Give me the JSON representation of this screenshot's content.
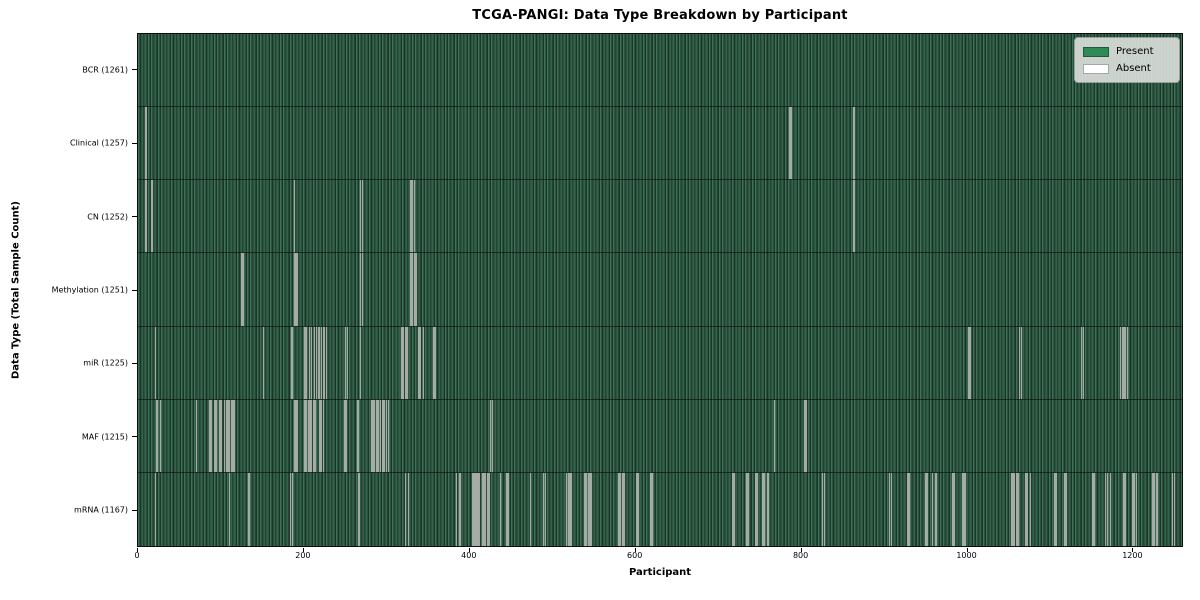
{
  "chart_data": {
    "type": "heatmap",
    "title": "TCGA-PANGI: Data Type Breakdown by Participant",
    "xlabel": "Participant",
    "ylabel": "Data Type (Total Sample Count)",
    "x_ticks": [
      0,
      200,
      400,
      600,
      800,
      1000,
      1200
    ],
    "x_max": 1261,
    "grid": false,
    "legend_position": "upper right",
    "legend": [
      {
        "label": "Present",
        "color": "#2e8b57"
      },
      {
        "label": "Absent",
        "color": "#ffffff"
      }
    ],
    "rows": [
      {
        "label": "BCR (1261)",
        "name": "BCR",
        "present_count": 1261,
        "absent_participants": []
      },
      {
        "label": "Clinical (1257)",
        "name": "Clinical",
        "present_count": 1257,
        "absent_participants": [
          9,
          786,
          788,
          864
        ]
      },
      {
        "label": "CN (1252)",
        "name": "CN",
        "present_count": 1252,
        "absent_participants": [
          9,
          16,
          188,
          268,
          270,
          329,
          331,
          333,
          864
        ]
      },
      {
        "label": "Methylation (1251)",
        "name": "Methylation",
        "present_count": 1251,
        "absent_participants": [
          124,
          126,
          189,
          191,
          268,
          270,
          329,
          331,
          333,
          335
        ]
      },
      {
        "label": "miR (1225)",
        "name": "miR",
        "present_count": 1225,
        "absent_participants": [
          20,
          151,
          185,
          201,
          203,
          206,
          209,
          212,
          215,
          218,
          221,
          224,
          227,
          250,
          252,
          268,
          318,
          320,
          322,
          324,
          338,
          340,
          344,
          356,
          358,
          1003,
          1005,
          1064,
          1066,
          1139,
          1141,
          1186,
          1188,
          1190,
          1192,
          1194
        ]
      },
      {
        "label": "MAF (1215)",
        "name": "MAF",
        "present_count": 1215,
        "absent_participants": [
          22,
          26,
          70,
          86,
          88,
          92,
          94,
          98,
          100,
          104,
          106,
          108,
          110,
          112,
          114,
          116,
          189,
          191,
          201,
          203,
          205,
          207,
          209,
          211,
          213,
          219,
          221,
          223,
          249,
          251,
          265,
          281,
          283,
          285,
          288,
          290,
          292,
          295,
          297,
          299,
          302,
          425,
          427,
          768,
          804,
          806
        ]
      },
      {
        "label": "mRNA (1167)",
        "name": "mRNA",
        "present_count": 1167,
        "absent_participants": [
          20,
          110,
          133,
          183,
          186,
          266,
          322,
          326,
          384,
          388,
          404,
          406,
          408,
          410,
          412,
          415,
          417,
          419,
          421,
          423,
          437,
          445,
          447,
          473,
          489,
          491,
          517,
          519,
          521,
          523,
          539,
          541,
          543,
          545,
          547,
          580,
          582,
          584,
          586,
          602,
          604,
          618,
          620,
          717,
          719,
          734,
          736,
          745,
          747,
          754,
          756,
          760,
          826,
          828,
          907,
          909,
          929,
          931,
          951,
          953,
          959,
          963,
          983,
          985,
          995,
          997,
          999,
          1054,
          1056,
          1058,
          1060,
          1062,
          1071,
          1073,
          1077,
          1106,
          1108,
          1118,
          1120,
          1152,
          1154,
          1168,
          1170,
          1174,
          1190,
          1192,
          1201,
          1203,
          1205,
          1225,
          1227,
          1230,
          1249,
          1251
        ]
      }
    ]
  }
}
